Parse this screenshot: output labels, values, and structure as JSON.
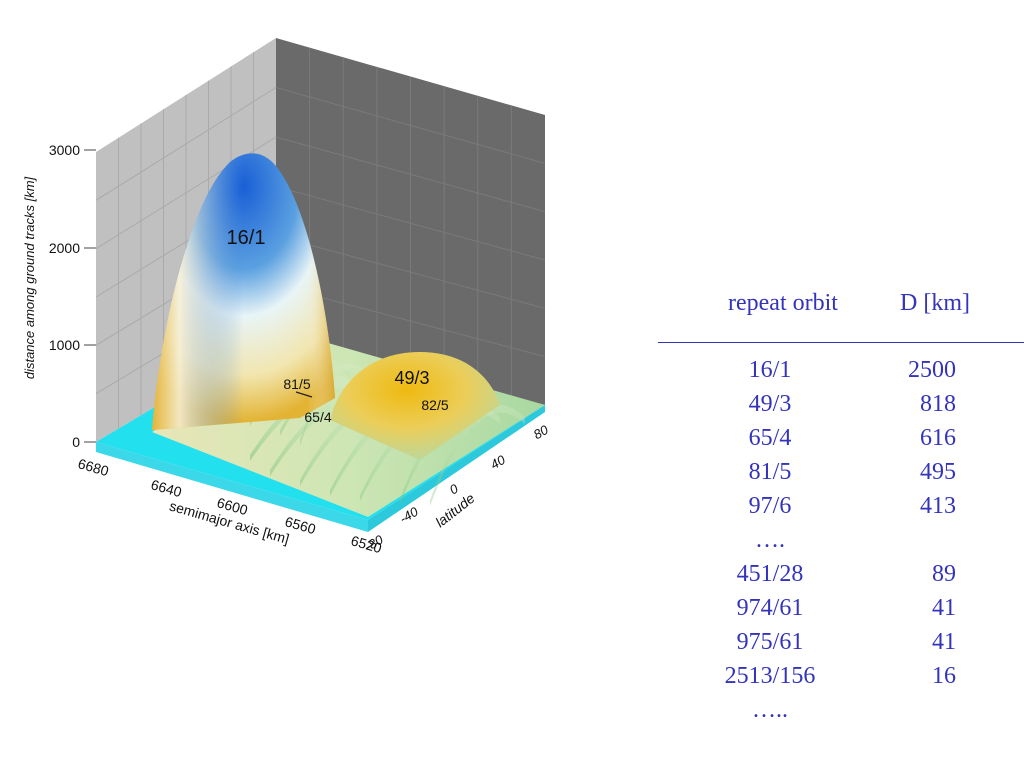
{
  "chart_data": {
    "type": "surface",
    "zlabel": "distance among ground tracks [km]",
    "xlabel": "semimajor axis [km]",
    "ylabel": "latitude",
    "z_ticks": [
      "0",
      "1000",
      "2000",
      "3000"
    ],
    "x_ticks": [
      "6680",
      "6640",
      "6600",
      "6560",
      "6520"
    ],
    "y_ticks": [
      "-80",
      "-40",
      "0",
      "40",
      "80"
    ],
    "zlim": [
      0,
      3000
    ],
    "xlim": [
      6520,
      6680
    ],
    "ylim": [
      -80,
      80
    ],
    "annotations": [
      {
        "label": "16/1",
        "semimajor_axis": 6624,
        "height": 2500
      },
      {
        "label": "49/3",
        "semimajor_axis": 6560,
        "height": 818
      },
      {
        "label": "81/5",
        "semimajor_axis": 6590,
        "height": 495
      },
      {
        "label": "65/4",
        "semimajor_axis": 6580,
        "height": 616
      },
      {
        "label": "82/5",
        "semimajor_axis": 6545,
        "height": 480
      }
    ]
  },
  "table": {
    "header_orbit": "repeat orbit",
    "header_d": "D  [km]",
    "rows": [
      {
        "orbit": "16/1",
        "d": "2500"
      },
      {
        "orbit": "49/3",
        "d": "818"
      },
      {
        "orbit": "65/4",
        "d": "616"
      },
      {
        "orbit": "81/5",
        "d": "495"
      },
      {
        "orbit": "97/6",
        "d": "413"
      },
      {
        "orbit": "….",
        "d": ""
      },
      {
        "orbit": "451/28",
        "d": "89"
      },
      {
        "orbit": "974/61",
        "d": "41"
      },
      {
        "orbit": "975/61",
        "d": "41"
      },
      {
        "orbit": "2513/156",
        "d": "16"
      },
      {
        "orbit": "…..",
        "d": ""
      }
    ]
  }
}
